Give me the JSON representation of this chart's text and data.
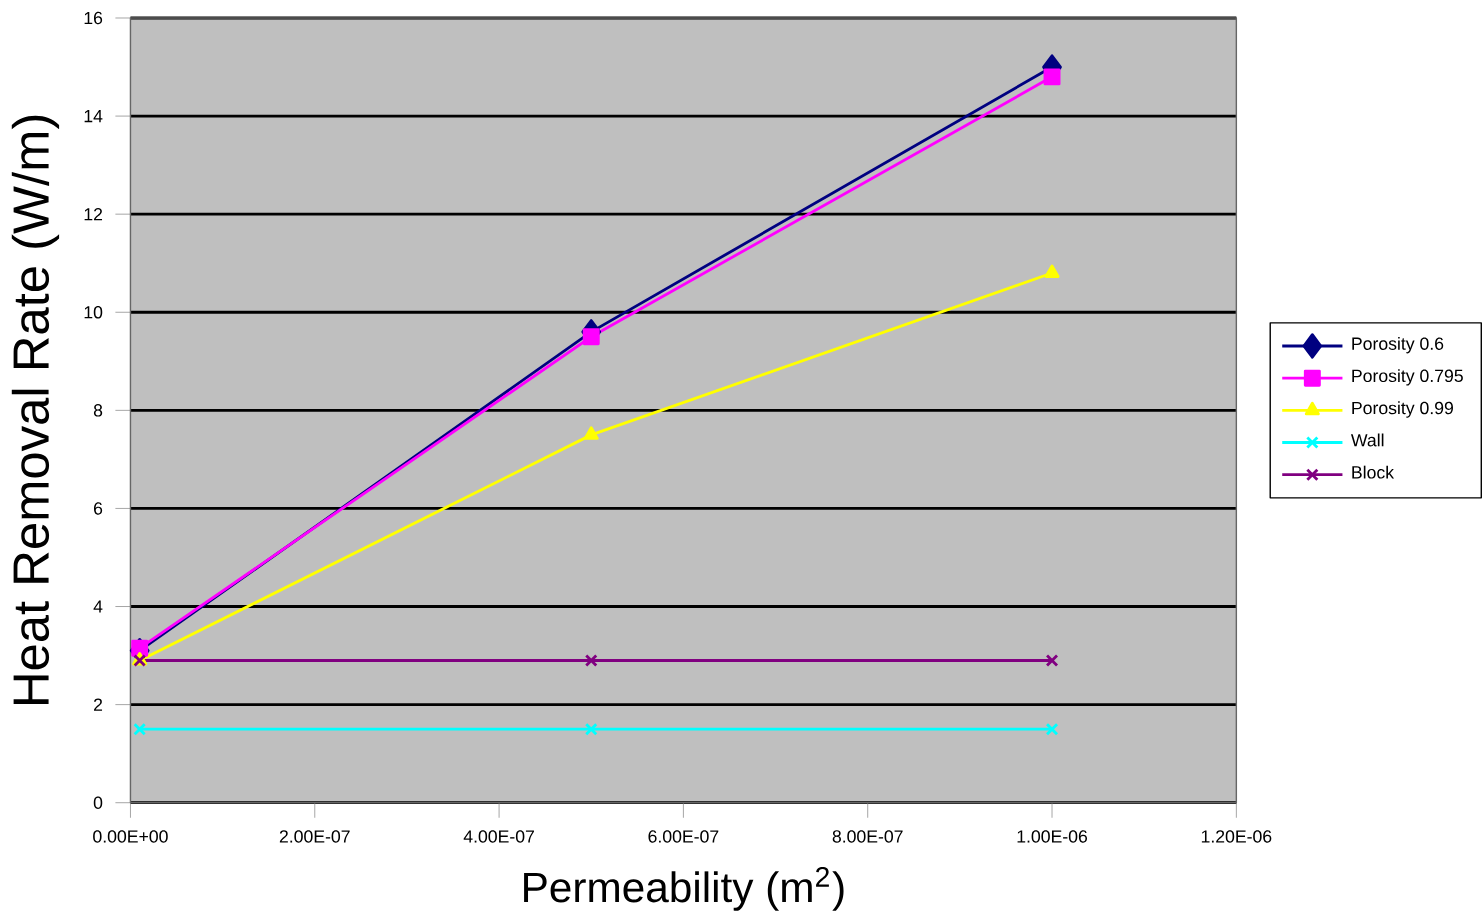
{
  "chart_data": {
    "type": "line",
    "xlabel": "Permeability (m$^{2}$)",
    "ylabel": "Heat Removal Rate (W/m)",
    "x": [
      1e-08,
      5e-07,
      1e-06
    ],
    "series": [
      {
        "name": "Porosity 0.6",
        "color": "#000080",
        "marker": "diamond",
        "values": [
          3.1,
          9.6,
          15.0
        ]
      },
      {
        "name": "Porosity 0.795",
        "color": "#ff00ff",
        "marker": "square",
        "values": [
          3.15,
          9.5,
          14.8
        ]
      },
      {
        "name": "Porosity 0.99",
        "color": "#ffff00",
        "marker": "triangle",
        "values": [
          2.9,
          7.5,
          10.8
        ]
      },
      {
        "name": "Wall",
        "color": "#00ffff",
        "marker": "cross",
        "values": [
          1.5,
          1.5,
          1.5
        ]
      },
      {
        "name": "Block",
        "color": "#800080",
        "marker": "cross",
        "values": [
          2.9,
          2.9,
          2.9
        ]
      }
    ],
    "xlim": [
      0,
      1.2e-06
    ],
    "xticks": [
      {
        "value": 0,
        "label": "0.00E+00"
      },
      {
        "value": 2e-07,
        "label": "2.00E-07"
      },
      {
        "value": 4e-07,
        "label": "4.00E-07"
      },
      {
        "value": 6e-07,
        "label": "6.00E-07"
      },
      {
        "value": 8e-07,
        "label": "8.00E-07"
      },
      {
        "value": 1e-06,
        "label": "1.00E-06"
      },
      {
        "value": 1.2e-06,
        "label": "1.20E-06"
      }
    ],
    "ylim": [
      0,
      16
    ],
    "yticks": [
      0,
      2,
      4,
      6,
      8,
      10,
      12,
      14,
      16
    ],
    "grid": "y",
    "legend": "right",
    "line_style": "solid"
  }
}
